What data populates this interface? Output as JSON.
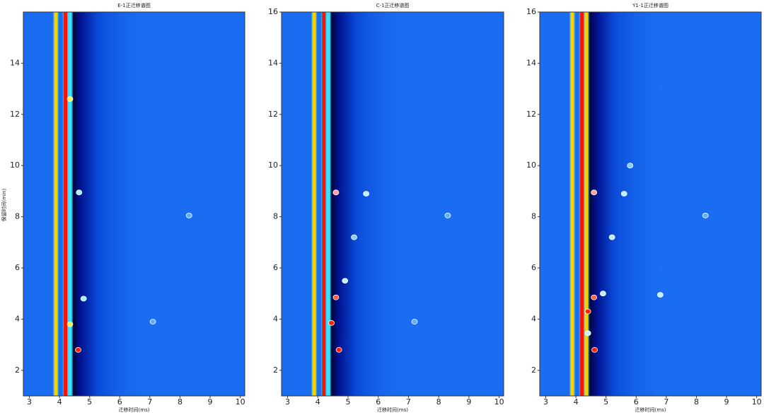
{
  "chart_data": [
    {
      "type": "heatmap",
      "title": "E-1正迁移谱图",
      "x_label": "迁移时间(ms)",
      "y_label": "保留时间(min)",
      "xlim": [
        2.8,
        10.15
      ],
      "ylim": [
        1,
        16
      ],
      "xticks": [
        3,
        4,
        5,
        6,
        7,
        8,
        9,
        10
      ],
      "yticks": [
        2,
        4,
        6,
        8,
        10,
        12,
        14
      ],
      "background": "#1a6cf0",
      "bands": [
        {
          "x": 3.88,
          "color": "#ffd000"
        },
        {
          "x": 4.2,
          "color": "#ff1000"
        },
        {
          "x": 4.35,
          "color": "#40e0ff"
        }
      ],
      "spots": [
        {
          "x": 4.62,
          "y": 2.8,
          "color": "#ff2000"
        },
        {
          "x": 4.35,
          "y": 3.8,
          "color": "#f0f060"
        },
        {
          "x": 4.35,
          "y": 12.6,
          "color": "#f0f060"
        },
        {
          "x": 4.8,
          "y": 4.8,
          "color": "#a0f0ff"
        },
        {
          "x": 4.65,
          "y": 8.95,
          "color": "#a0f0ff"
        },
        {
          "x": 8.3,
          "y": 8.05,
          "color": "#60b0ff"
        },
        {
          "x": 7.1,
          "y": 3.9,
          "color": "#60b0ff"
        }
      ]
    },
    {
      "type": "heatmap",
      "title": "C-1正迁移谱图",
      "x_label": "迁移时间(ms)",
      "xlim": [
        2.8,
        10.15
      ],
      "ylim": [
        1,
        16
      ],
      "xticks": [
        3,
        4,
        5,
        6,
        7,
        8,
        9,
        10
      ],
      "yticks": [
        2,
        4,
        6,
        8,
        10,
        12,
        14,
        16
      ],
      "background": "#1a6cf0",
      "bands": [
        {
          "x": 3.88,
          "color": "#ffd000"
        },
        {
          "x": 4.2,
          "color": "#ff1000"
        },
        {
          "x": 4.35,
          "color": "#40e0ff"
        }
      ],
      "spots": [
        {
          "x": 4.7,
          "y": 2.8,
          "color": "#ff2000"
        },
        {
          "x": 4.45,
          "y": 3.85,
          "color": "#ff2000"
        },
        {
          "x": 4.6,
          "y": 4.85,
          "color": "#ff6040"
        },
        {
          "x": 4.6,
          "y": 8.95,
          "color": "#ffa0a0"
        },
        {
          "x": 4.9,
          "y": 5.5,
          "color": "#c0f0ff"
        },
        {
          "x": 5.6,
          "y": 8.9,
          "color": "#c0f0ff"
        },
        {
          "x": 5.2,
          "y": 7.2,
          "color": "#80d0ff"
        },
        {
          "x": 8.3,
          "y": 8.05,
          "color": "#60b0ff"
        },
        {
          "x": 7.2,
          "y": 3.9,
          "color": "#60b0ff"
        }
      ]
    },
    {
      "type": "heatmap",
      "title": "Y1-1正迁移谱图",
      "x_label": "迁移时间(ms)",
      "xlim": [
        2.8,
        10.15
      ],
      "ylim": [
        1,
        16
      ],
      "xticks": [
        3,
        4,
        5,
        6,
        7,
        8,
        9,
        10
      ],
      "yticks": [
        2,
        4,
        6,
        8,
        10,
        12,
        14,
        16
      ],
      "background": "#1a6cf0",
      "bands": [
        {
          "x": 3.88,
          "color": "#ffd000"
        },
        {
          "x": 4.2,
          "color": "#ff1000"
        },
        {
          "x": 4.35,
          "color": "#ffd000"
        }
      ],
      "spots": [
        {
          "x": 4.62,
          "y": 2.8,
          "color": "#ff2000"
        },
        {
          "x": 4.4,
          "y": 4.3,
          "color": "#ff2000"
        },
        {
          "x": 4.6,
          "y": 4.85,
          "color": "#ff6040"
        },
        {
          "x": 4.6,
          "y": 8.95,
          "color": "#ffa0a0"
        },
        {
          "x": 5.6,
          "y": 8.9,
          "color": "#c0f0ff"
        },
        {
          "x": 5.2,
          "y": 7.2,
          "color": "#c0f0ff"
        },
        {
          "x": 4.9,
          "y": 5.0,
          "color": "#c0f0ff"
        },
        {
          "x": 6.8,
          "y": 4.95,
          "color": "#c0f0ff"
        },
        {
          "x": 5.8,
          "y": 10.0,
          "color": "#80d0ff"
        },
        {
          "x": 4.4,
          "y": 3.45,
          "color": "#c0f0ff"
        },
        {
          "x": 8.3,
          "y": 8.05,
          "color": "#60b0ff"
        }
      ]
    }
  ]
}
